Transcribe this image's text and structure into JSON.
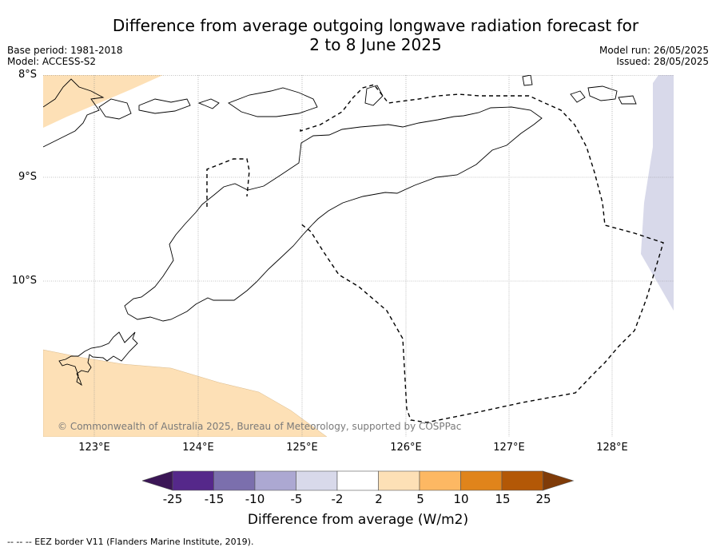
{
  "title_line1": "Difference from average outgoing longwave radiation forecast for",
  "title_line2": "2 to 8 June 2025",
  "base_period": "Base period: 1981-2018",
  "model": "Model: ACCESS-S2",
  "model_run": "Model run: 26/05/2025",
  "issued": "Issued: 28/05/2025",
  "lat_labels": [
    "8°S",
    "9°S",
    "10°S"
  ],
  "lon_labels": [
    "123°E",
    "124°E",
    "125°E",
    "126°E",
    "127°E",
    "128°E"
  ],
  "copyright": "© Commonwealth of Australia 2025, Bureau of Meteorology, supported by COSPPac",
  "colorbar": {
    "title": "Difference from average (W/m2)",
    "ticks": [
      "-25",
      "-15",
      "-10",
      "-5",
      "-2",
      "2",
      "5",
      "10",
      "15",
      "25"
    ],
    "colors": [
      "#3b1656",
      "#55288a",
      "#7b6fad",
      "#aca8d2",
      "#d8d9ea",
      "#ffffff",
      "#fde0b6",
      "#fdb863",
      "#e0841b",
      "#b35806",
      "#7f3b08"
    ]
  },
  "footer": "--  --  -- EEZ border V11 (Flanders Marine Institute, 2019)."
}
